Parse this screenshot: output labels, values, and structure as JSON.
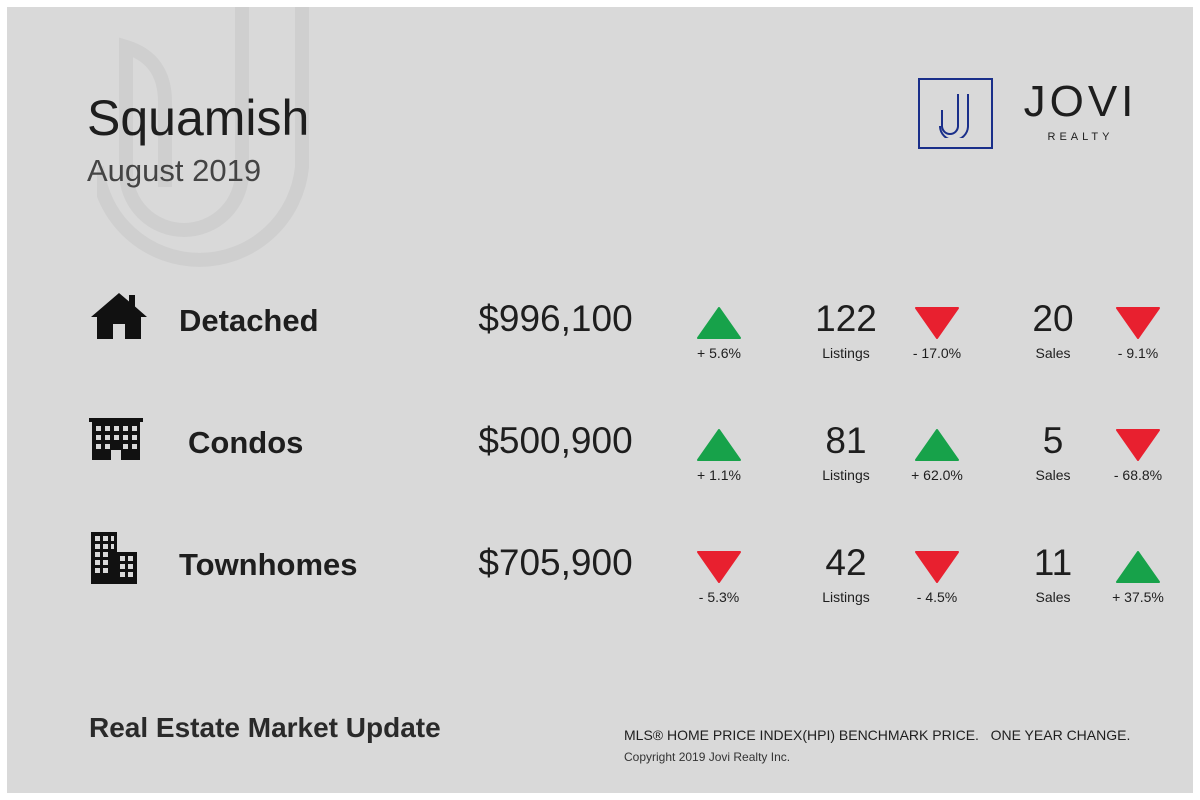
{
  "header": {
    "city": "Squamish",
    "date": "August 2019"
  },
  "brand": {
    "name": "JOVI",
    "sub": "REALTY",
    "monogram": "J",
    "logo_color": "#1a2f8a"
  },
  "colors": {
    "up": "#17a24a",
    "down": "#e8202f",
    "background": "#d9d9d9"
  },
  "rows": [
    {
      "type": "Detached",
      "icon": "house-icon",
      "price": "$996,100",
      "price_direction": "up",
      "price_change": "+ 5.6%",
      "listings": "122",
      "listings_label": "Listings",
      "listings_direction": "down",
      "listings_change": "- 17.0%",
      "sales": "20",
      "sales_label": "Sales",
      "sales_direction": "down",
      "sales_change": "- 9.1%"
    },
    {
      "type": "Condos",
      "icon": "condo-building-icon",
      "price": "$500,900",
      "price_direction": "up",
      "price_change": "+ 1.1%",
      "listings": "81",
      "listings_label": "Listings",
      "listings_direction": "up",
      "listings_change": "+ 62.0%",
      "sales": "5",
      "sales_label": "Sales",
      "sales_direction": "down",
      "sales_change": "- 68.8%"
    },
    {
      "type": "Townhomes",
      "icon": "townhome-building-icon",
      "price": "$705,900",
      "price_direction": "down",
      "price_change": "- 5.3%",
      "listings": "42",
      "listings_label": "Listings",
      "listings_direction": "down",
      "listings_change": "- 4.5%",
      "sales": "11",
      "sales_label": "Sales",
      "sales_direction": "up",
      "sales_change": "+ 37.5%"
    }
  ],
  "footer": {
    "title": "Real Estate Market Update",
    "note": "MLS® HOME PRICE INDEX(HPI) BENCHMARK PRICE.   ONE YEAR CHANGE.",
    "copyright": "Copyright 2019 Jovi Realty Inc."
  }
}
